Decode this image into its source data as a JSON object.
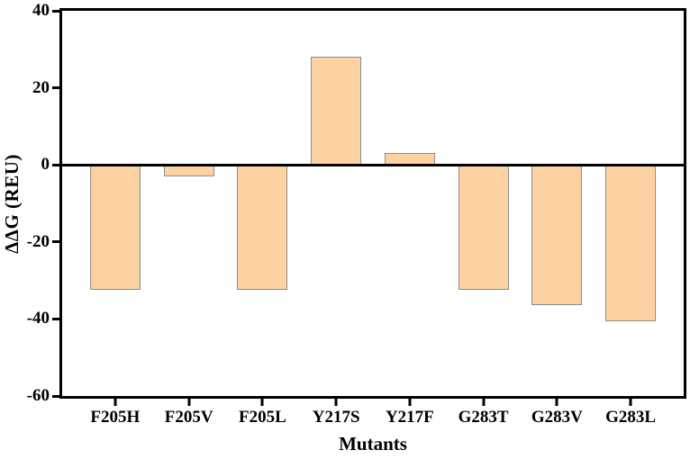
{
  "chart_data": {
    "type": "bar",
    "title": "",
    "categories": [
      "F205H",
      "F205V",
      "F205L",
      "Y217S",
      "Y217F",
      "G283T",
      "G283V",
      "G283L"
    ],
    "values": [
      -32.5,
      -3,
      -32.5,
      28,
      3,
      -32.5,
      -36.5,
      -40.5
    ],
    "xlabel": "Mutants",
    "ylabel": "ΔΔG (REU)",
    "ylim": [
      -60,
      40
    ],
    "yticks": [
      40,
      20,
      0,
      -20,
      -40,
      -60
    ],
    "grid": false,
    "legend": null,
    "zero_line": true,
    "bar_color": "#FCD2A2",
    "bar_border_color": "#8C8C8C",
    "axis_color": "#000000",
    "background_color": "#FFFFFF"
  }
}
